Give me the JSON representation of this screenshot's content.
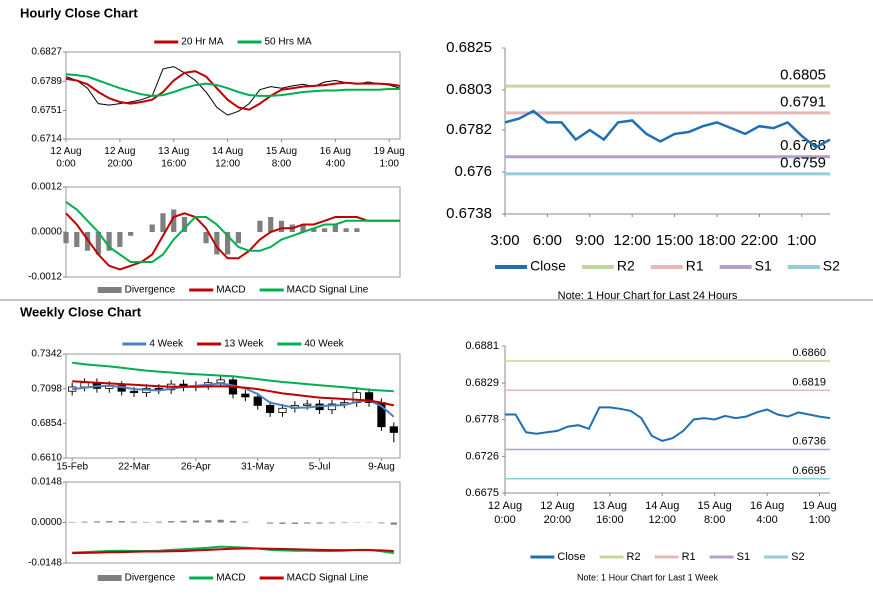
{
  "headers": [
    "Hourly Close Chart",
    "Weekly Close Chart"
  ],
  "chart_data": [
    {
      "type": "line",
      "x": [
        0,
        4,
        8,
        12,
        16,
        20,
        24,
        28,
        32,
        36,
        40,
        44,
        48,
        52,
        56,
        60,
        64,
        68,
        72,
        76,
        80,
        84,
        88,
        92,
        96,
        100,
        104,
        108,
        112,
        116,
        120,
        124
      ],
      "xlim": [
        0,
        124
      ],
      "xticks": [
        {
          "value": 0,
          "label": "12 Aug\n0:00"
        },
        {
          "value": 20,
          "label": "12 Aug\n20:00"
        },
        {
          "value": 40,
          "label": "13 Aug\n16:00"
        },
        {
          "value": 60,
          "label": "14 Aug\n12:00"
        },
        {
          "value": 80,
          "label": "15 Aug\n8:00"
        },
        {
          "value": 100,
          "label": "16 Aug\n4:00"
        },
        {
          "value": 120,
          "label": "19 Aug\n1:00"
        }
      ],
      "ylim": [
        0.6714,
        0.6827
      ],
      "yticks": [
        0.6714,
        0.6751,
        0.6789,
        0.6827
      ],
      "series": [
        {
          "color": "#000000",
          "values": [
            0.6795,
            0.679,
            0.678,
            0.676,
            0.6758,
            0.676,
            0.6762,
            0.6765,
            0.677,
            0.6805,
            0.6808,
            0.68,
            0.679,
            0.6775,
            0.6755,
            0.6745,
            0.675,
            0.676,
            0.6778,
            0.6782,
            0.678,
            0.6783,
            0.6785,
            0.6782,
            0.6788,
            0.679,
            0.6787,
            0.6785,
            0.6788,
            0.6786,
            0.6784,
            0.678
          ]
        },
        {
          "name": "20 Hr MA",
          "color": "#c00000",
          "values": [
            0.6792,
            0.679,
            0.6785,
            0.6775,
            0.6767,
            0.6762,
            0.676,
            0.6762,
            0.6765,
            0.6775,
            0.679,
            0.68,
            0.6802,
            0.6795,
            0.678,
            0.6765,
            0.6755,
            0.6752,
            0.676,
            0.677,
            0.6778,
            0.678,
            0.6782,
            0.6783,
            0.6784,
            0.6786,
            0.6787,
            0.6786,
            0.6786,
            0.6786,
            0.6785,
            0.6783
          ]
        },
        {
          "name": "50 Hrs MA",
          "color": "#00b050",
          "values": [
            0.6798,
            0.6797,
            0.6795,
            0.679,
            0.6785,
            0.678,
            0.6776,
            0.6772,
            0.677,
            0.6771,
            0.6775,
            0.678,
            0.6784,
            0.6786,
            0.6784,
            0.678,
            0.6775,
            0.6771,
            0.677,
            0.677,
            0.6771,
            0.6773,
            0.6775,
            0.6776,
            0.6777,
            0.6777,
            0.6778,
            0.6778,
            0.6778,
            0.6778,
            0.6779,
            0.6779
          ]
        }
      ]
    },
    {
      "type": "macd",
      "x": [
        0,
        4,
        8,
        12,
        16,
        20,
        24,
        28,
        32,
        36,
        40,
        44,
        48,
        52,
        56,
        60,
        64,
        68,
        72,
        76,
        80,
        84,
        88,
        92,
        96,
        100,
        104,
        108,
        112,
        116,
        120,
        124
      ],
      "xlim": [
        0,
        124
      ],
      "ylim": [
        -0.0012,
        0.0012
      ],
      "yticks": [
        -0.0012,
        {
          "value": 0,
          "label": "0.0000"
        },
        0.0012
      ],
      "series": [
        {
          "name": "Divergence",
          "style": "bar",
          "color": "#7f7f7f",
          "values": [
            -0.0003,
            -0.0004,
            -0.0005,
            -0.0006,
            -0.0005,
            -0.0004,
            -0.0001,
            0,
            0.0002,
            0.0005,
            0.0006,
            0.0004,
            0,
            -0.0003,
            -0.0006,
            -0.0006,
            -0.0003,
            0,
            0.0003,
            0.0004,
            0.0003,
            0.0002,
            0.0002,
            0.0001,
            0.0001,
            0.0002,
            0.0001,
            0.0001,
            0,
            0,
            0,
            0
          ]
        },
        {
          "name": "MACD",
          "color": "#c00000",
          "values": [
            0.0005,
            0.0002,
            -0.0002,
            -0.0006,
            -0.0009,
            -0.001,
            -0.0009,
            -0.0008,
            -0.0006,
            -0.0001,
            0.0004,
            0.0005,
            0.0004,
            0.0001,
            -0.0004,
            -0.0007,
            -0.0007,
            -0.0005,
            -0.0002,
            0,
            0.0001,
            0.0001,
            0.0002,
            0.0002,
            0.0003,
            0.0004,
            0.0004,
            0.0004,
            0.0003,
            0.0003,
            0.0003,
            0.0003
          ]
        },
        {
          "name": "MACD Signal Line",
          "color": "#00b050",
          "values": [
            0.0008,
            0.0006,
            0.0003,
            0,
            -0.0004,
            -0.0006,
            -0.0008,
            -0.0008,
            -0.0008,
            -0.0006,
            -0.0002,
            0.0001,
            0.0004,
            0.0004,
            0.0002,
            -0.0001,
            -0.0004,
            -0.0005,
            -0.0005,
            -0.0004,
            -0.0002,
            -0.0001,
            0,
            0.0001,
            0.0002,
            0.0002,
            0.0003,
            0.0003,
            0.0003,
            0.0003,
            0.0003,
            0.0003
          ]
        }
      ]
    },
    {
      "type": "line",
      "categories": [
        "3:00",
        null,
        null,
        "6:00",
        null,
        null,
        "9:00",
        null,
        null,
        "12:00",
        null,
        null,
        "15:00",
        null,
        null,
        "18:00",
        null,
        null,
        "22:00",
        null,
        null,
        "1:00",
        null,
        null
      ],
      "ylim": [
        0.6738,
        0.6825
      ],
      "yticks": [
        0.6738,
        0.676,
        0.6782,
        0.6803,
        0.6825
      ],
      "series": [
        {
          "name": "Close",
          "color": "#1f6fb5",
          "values": [
            0.6786,
            0.6788,
            0.6792,
            0.6786,
            0.6786,
            0.6777,
            0.6782,
            0.6777,
            0.6786,
            0.6787,
            0.678,
            0.6776,
            0.678,
            0.6781,
            0.6784,
            0.6786,
            0.6783,
            0.678,
            0.6784,
            0.6783,
            0.6786,
            0.6779,
            0.6773,
            0.6777
          ]
        }
      ],
      "levels": [
        {
          "name": "R2",
          "color": "#c4d79b",
          "value": 0.6805
        },
        {
          "name": "R1",
          "color": "#e6b9b8",
          "value": 0.6791
        },
        {
          "name": "S1",
          "color": "#b3a2c7",
          "value": 0.6768
        },
        {
          "name": "S2",
          "color": "#93cddd",
          "value": 0.6759
        }
      ],
      "note": "Note: 1 Hour Chart for Last 24 Hours"
    },
    {
      "type": "candlestick",
      "categories": [
        "15-Feb",
        null,
        null,
        null,
        null,
        "22-Mar",
        null,
        null,
        null,
        null,
        "26-Apr",
        null,
        null,
        null,
        null,
        "31-May",
        null,
        null,
        null,
        null,
        "5-Jul",
        null,
        null,
        null,
        null,
        "9-Aug",
        null
      ],
      "ylim": [
        0.661,
        0.7342
      ],
      "yticks": [
        {
          "value": 0.661,
          "label": "0.6610"
        },
        0.6854,
        0.7098,
        0.7342
      ],
      "candles": {
        "open": [
          0.708,
          0.711,
          0.714,
          0.71,
          0.712,
          0.708,
          0.707,
          0.71,
          0.709,
          0.713,
          0.711,
          0.712,
          0.714,
          0.716,
          0.706,
          0.704,
          0.698,
          0.693,
          0.696,
          0.698,
          0.699,
          0.695,
          0.699,
          0.7,
          0.707,
          0.7,
          0.683
        ],
        "high": [
          0.714,
          0.717,
          0.717,
          0.715,
          0.715,
          0.711,
          0.713,
          0.713,
          0.716,
          0.716,
          0.715,
          0.717,
          0.719,
          0.719,
          0.709,
          0.707,
          0.701,
          0.699,
          0.701,
          0.702,
          0.702,
          0.702,
          0.703,
          0.71,
          0.71,
          0.703,
          0.686
        ],
        "low": [
          0.705,
          0.708,
          0.707,
          0.707,
          0.705,
          0.704,
          0.704,
          0.706,
          0.706,
          0.708,
          0.708,
          0.709,
          0.711,
          0.703,
          0.701,
          0.695,
          0.69,
          0.69,
          0.693,
          0.695,
          0.692,
          0.692,
          0.696,
          0.697,
          0.697,
          0.68,
          0.672
        ],
        "close": [
          0.711,
          0.714,
          0.71,
          0.712,
          0.708,
          0.707,
          0.71,
          0.709,
          0.713,
          0.711,
          0.712,
          0.714,
          0.716,
          0.706,
          0.704,
          0.698,
          0.693,
          0.696,
          0.698,
          0.699,
          0.695,
          0.699,
          0.7,
          0.707,
          0.7,
          0.683,
          0.679
        ]
      },
      "series": [
        {
          "name": "4 Week",
          "color": "#4f81bd",
          "values": [
            0.7095,
            0.7105,
            0.7115,
            0.7118,
            0.711,
            0.7095,
            0.709,
            0.7085,
            0.7098,
            0.711,
            0.7118,
            0.7125,
            0.7135,
            0.712,
            0.71,
            0.706,
            0.7,
            0.698,
            0.6965,
            0.6965,
            0.6975,
            0.698,
            0.6982,
            0.7005,
            0.7015,
            0.6975,
            0.69
          ]
        },
        {
          "name": "13 Week",
          "color": "#c00000",
          "values": [
            0.715,
            0.7145,
            0.714,
            0.7135,
            0.713,
            0.7125,
            0.712,
            0.7115,
            0.7112,
            0.7112,
            0.7112,
            0.7113,
            0.7115,
            0.7112,
            0.7105,
            0.7095,
            0.708,
            0.7065,
            0.7055,
            0.7045,
            0.7035,
            0.703,
            0.7025,
            0.702,
            0.7015,
            0.7,
            0.698
          ]
        },
        {
          "name": "40 Week",
          "color": "#00b050",
          "values": [
            0.728,
            0.727,
            0.7262,
            0.7255,
            0.7245,
            0.7235,
            0.7225,
            0.7218,
            0.7212,
            0.7205,
            0.72,
            0.7195,
            0.719,
            0.7185,
            0.7175,
            0.7165,
            0.7155,
            0.7145,
            0.7138,
            0.713,
            0.7122,
            0.7115,
            0.7108,
            0.71,
            0.709,
            0.7085,
            0.708
          ]
        }
      ]
    },
    {
      "type": "macd",
      "ylim": [
        -0.0148,
        0.0148
      ],
      "yticks": [
        -0.0148,
        {
          "value": 0,
          "label": "0.0000"
        },
        0.0148
      ],
      "series": [
        {
          "name": "Divergence",
          "style": "bar",
          "color": "#7f7f7f",
          "values": [
            0.0002,
            0.0003,
            0.0004,
            0.0005,
            0.0005,
            0.0003,
            0.0002,
            0.0003,
            0.0005,
            0.0006,
            0.0007,
            0.0008,
            0.001,
            0.0006,
            0.0003,
            0,
            -0.0004,
            -0.0005,
            -0.0005,
            -0.0004,
            -0.0004,
            -0.0003,
            -0.0002,
            0.0001,
            0.0001,
            -0.0003,
            -0.0008
          ]
        },
        {
          "name": "MACD",
          "color": "#00b050",
          "values": [
            -0.011,
            -0.0108,
            -0.0106,
            -0.0104,
            -0.0103,
            -0.0104,
            -0.0104,
            -0.0103,
            -0.01,
            -0.0098,
            -0.0095,
            -0.0092,
            -0.0088,
            -0.009,
            -0.0092,
            -0.0095,
            -0.01,
            -0.0102,
            -0.0103,
            -0.0103,
            -0.0104,
            -0.0104,
            -0.0103,
            -0.01,
            -0.01,
            -0.0105,
            -0.0112
          ]
        },
        {
          "name": "MACD Signal Line",
          "color": "#c00000",
          "values": [
            -0.0112,
            -0.0111,
            -0.011,
            -0.0109,
            -0.0108,
            -0.0107,
            -0.0106,
            -0.0106,
            -0.0105,
            -0.0104,
            -0.0102,
            -0.01,
            -0.0098,
            -0.0096,
            -0.0095,
            -0.0095,
            -0.0096,
            -0.0097,
            -0.0098,
            -0.0099,
            -0.01,
            -0.0101,
            -0.0101,
            -0.0101,
            -0.0101,
            -0.0102,
            -0.0104
          ]
        }
      ]
    },
    {
      "type": "line",
      "x": [
        0,
        4,
        8,
        12,
        16,
        20,
        24,
        28,
        32,
        36,
        40,
        44,
        48,
        52,
        56,
        60,
        64,
        68,
        72,
        76,
        80,
        84,
        88,
        92,
        96,
        100,
        104,
        108,
        112,
        116,
        120,
        124
      ],
      "xlim": [
        0,
        124
      ],
      "xticks": [
        {
          "value": 0,
          "label": "12 Aug\n0:00"
        },
        {
          "value": 20,
          "label": "12 Aug\n20:00"
        },
        {
          "value": 40,
          "label": "13 Aug\n16:00"
        },
        {
          "value": 60,
          "label": "14 Aug\n12:00"
        },
        {
          "value": 80,
          "label": "15 Aug\n8:00"
        },
        {
          "value": 100,
          "label": "16 Aug\n4:00"
        },
        {
          "value": 120,
          "label": "19 Aug\n1:00"
        }
      ],
      "ylim": [
        0.6675,
        0.6881
      ],
      "yticks": [
        0.6675,
        0.6726,
        0.6778,
        0.6829,
        0.6881
      ],
      "series": [
        {
          "name": "Close",
          "color": "#1f6fb5",
          "values": [
            0.6785,
            0.6785,
            0.676,
            0.6758,
            0.676,
            0.6762,
            0.6768,
            0.677,
            0.6765,
            0.6795,
            0.6795,
            0.6793,
            0.679,
            0.678,
            0.6755,
            0.6748,
            0.6752,
            0.6762,
            0.6778,
            0.678,
            0.6778,
            0.6783,
            0.678,
            0.6782,
            0.6788,
            0.6792,
            0.6785,
            0.6782,
            0.6788,
            0.6785,
            0.6782,
            0.678
          ]
        }
      ],
      "levels": [
        {
          "name": "R2",
          "color": "#c4d79b",
          "value": 0.686,
          "value_label": "0.6860"
        },
        {
          "name": "R1",
          "color": "#e6b9b8",
          "value": 0.6819
        },
        {
          "name": "S1",
          "color": "#b3a2c7",
          "value": 0.6736
        },
        {
          "name": "S2",
          "color": "#93cddd",
          "value": 0.6695
        }
      ],
      "note": "Note: 1 Hour Chart for Last 1 Week"
    }
  ]
}
